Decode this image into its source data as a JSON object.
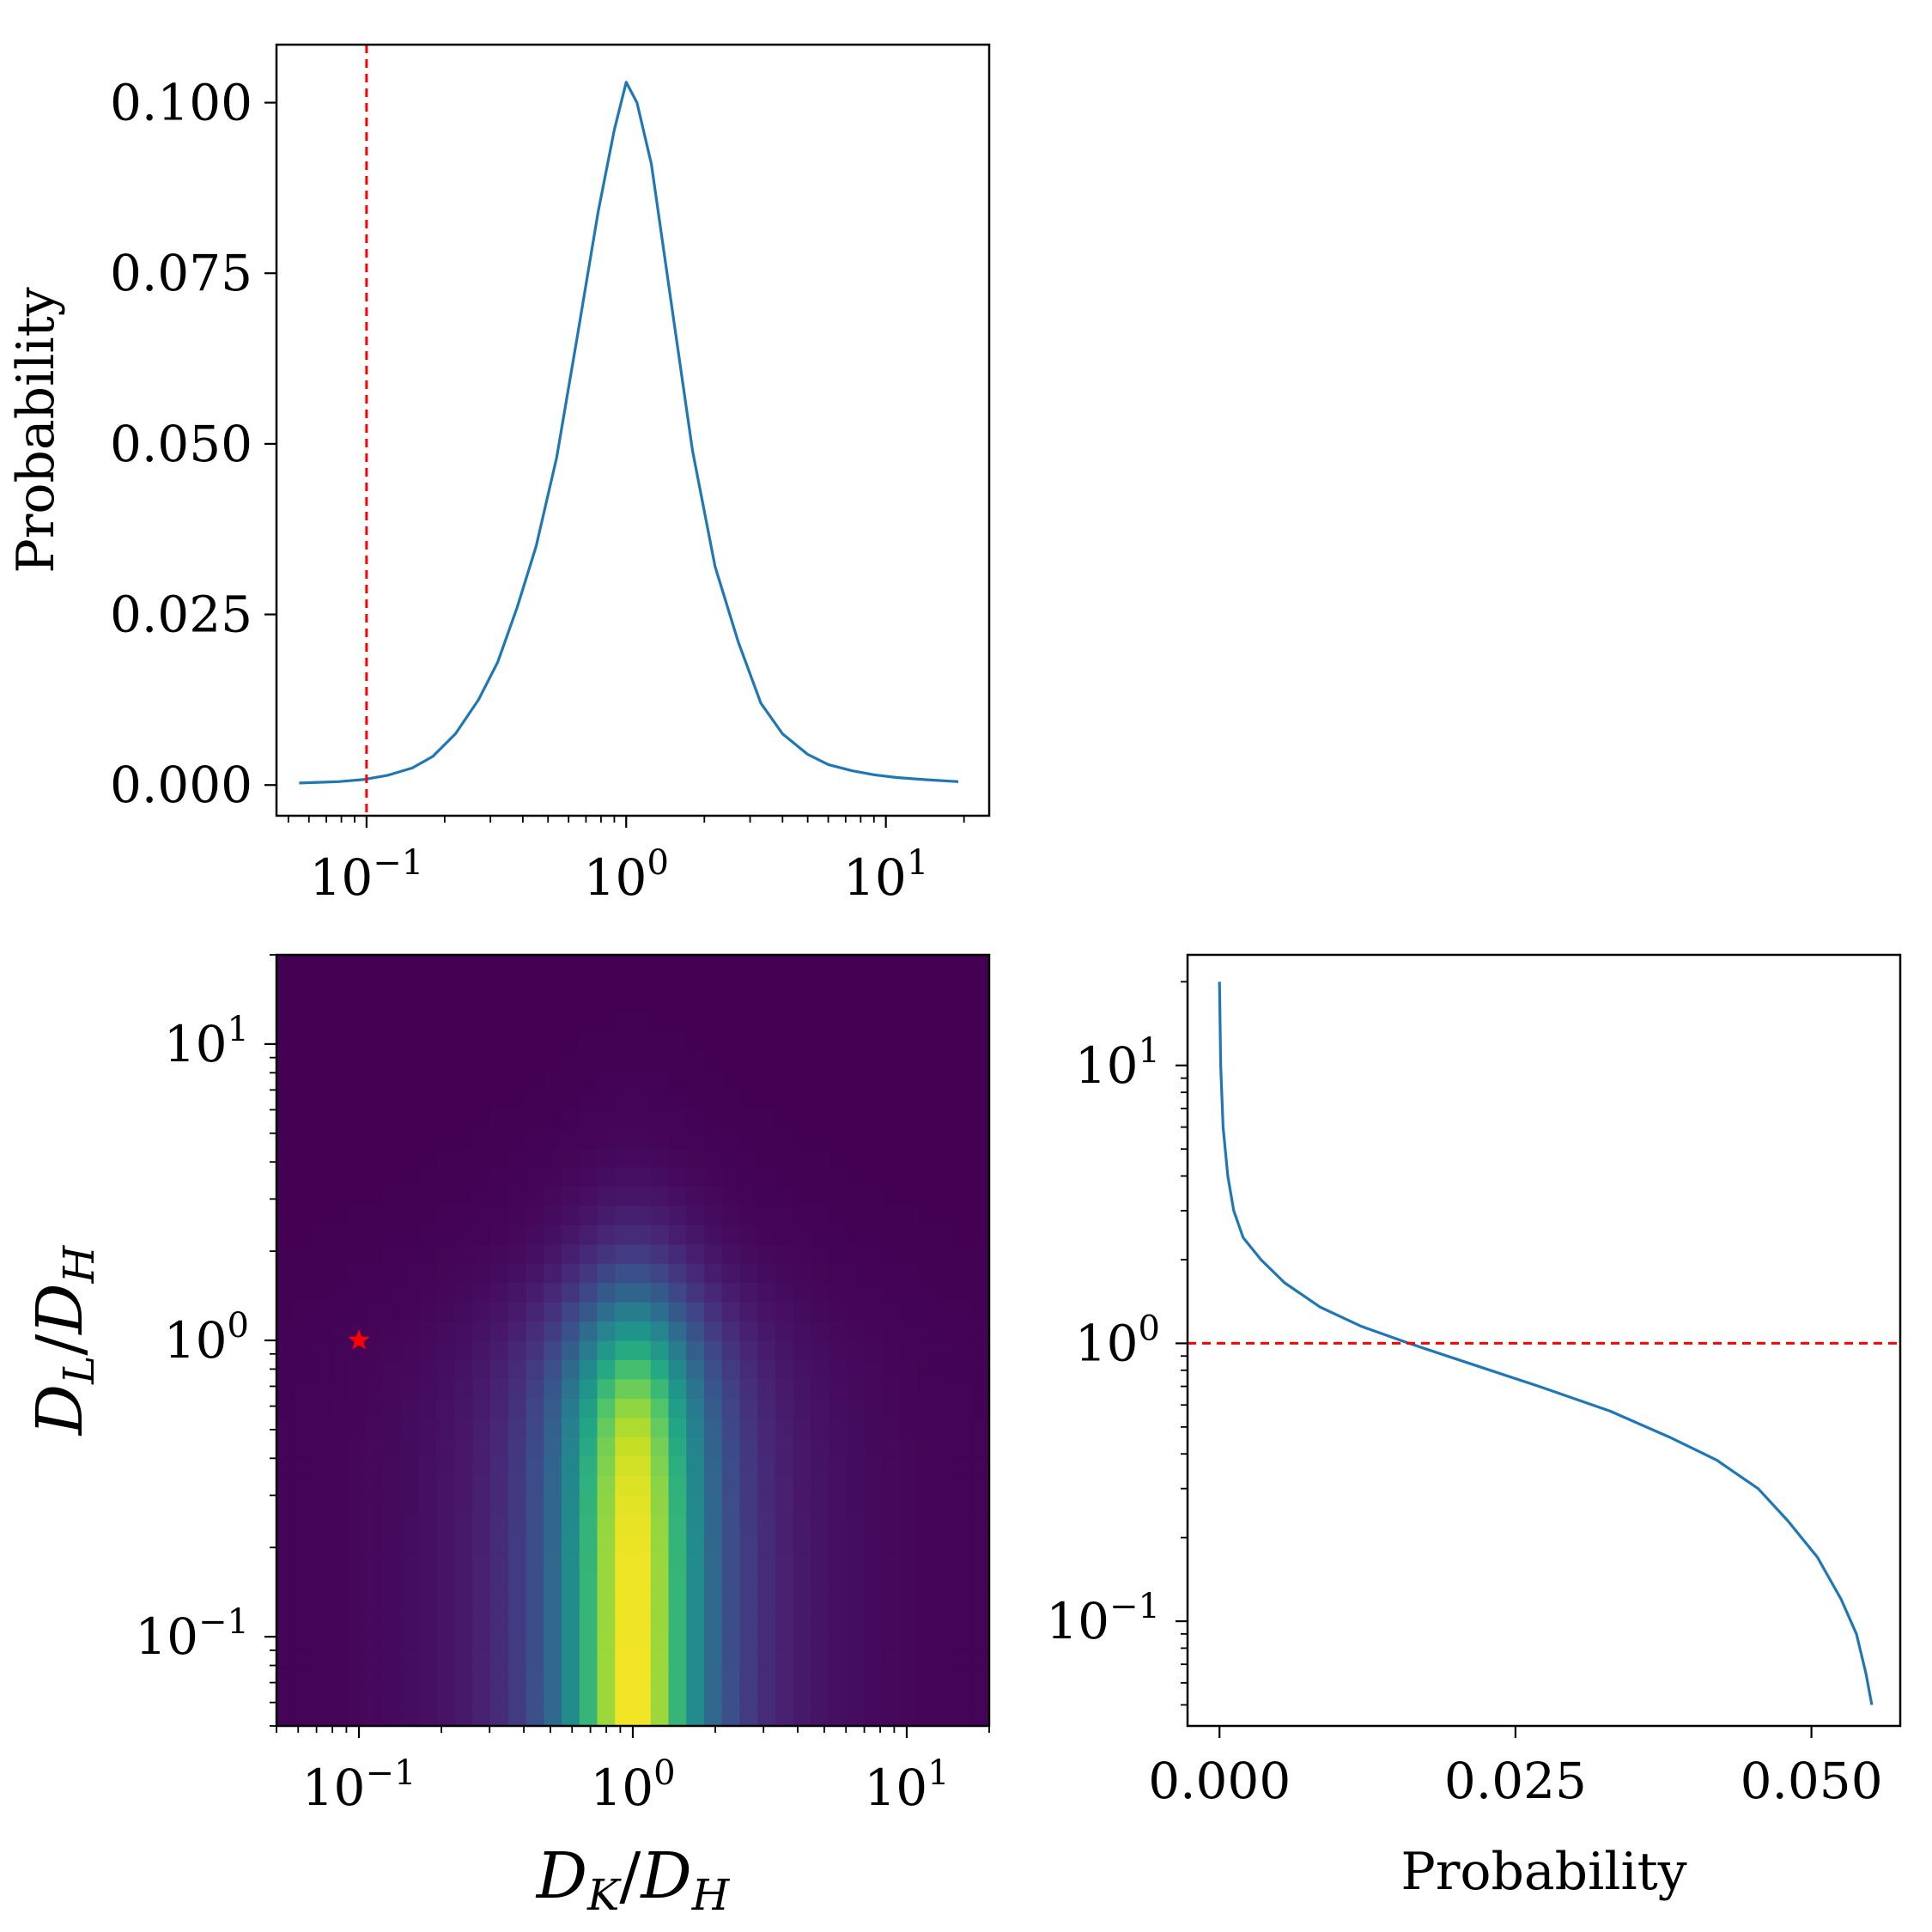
{
  "chart_data": [
    {
      "id": "top-marginal",
      "type": "line",
      "xscale": "log",
      "xlim": [
        0.045,
        25
      ],
      "ylim": [
        -0.0045,
        0.1085
      ],
      "yticks": [
        0.0,
        0.025,
        0.05,
        0.075,
        0.1
      ],
      "ytick_labels": [
        "0.000",
        "0.025",
        "0.050",
        "0.075",
        "0.100"
      ],
      "xticks": [
        0.1,
        1,
        10
      ],
      "xtick_labels": [
        {
          "base": "10",
          "exp": "−1"
        },
        {
          "base": "10",
          "exp": "0"
        },
        {
          "base": "10",
          "exp": "1"
        }
      ],
      "ylabel": "Probability",
      "xlabel": "",
      "series_color": "#1f77b4",
      "x": [
        0.055,
        0.078,
        0.097,
        0.12,
        0.15,
        0.18,
        0.22,
        0.27,
        0.32,
        0.38,
        0.45,
        0.54,
        0.65,
        0.78,
        0.9,
        1.0,
        1.1,
        1.25,
        1.5,
        1.8,
        2.2,
        2.7,
        3.3,
        4.0,
        5.0,
        6.0,
        7.4,
        9.0,
        11.0,
        14.0,
        19.0
      ],
      "y": [
        0.0003,
        0.0005,
        0.0008,
        0.0014,
        0.0025,
        0.0042,
        0.0075,
        0.0125,
        0.018,
        0.026,
        0.035,
        0.048,
        0.066,
        0.084,
        0.096,
        0.103,
        0.1,
        0.091,
        0.07,
        0.049,
        0.032,
        0.021,
        0.012,
        0.0075,
        0.0045,
        0.003,
        0.0021,
        0.0015,
        0.0011,
        0.0008,
        0.0005
      ],
      "reference_line": {
        "orientation": "vertical",
        "x": 0.1,
        "color": "#ff0000",
        "style": "dashed"
      }
    },
    {
      "id": "joint-heatmap",
      "type": "heatmap",
      "xscale": "log",
      "yscale": "log",
      "xlim": [
        0.05,
        20
      ],
      "ylim": [
        0.05,
        20
      ],
      "xticks": [
        0.1,
        1,
        10
      ],
      "xtick_labels": [
        {
          "base": "10",
          "exp": "−1"
        },
        {
          "base": "10",
          "exp": "0"
        },
        {
          "base": "10",
          "exp": "1"
        }
      ],
      "yticks": [
        0.1,
        1,
        10
      ],
      "ytick_labels": [
        {
          "base": "10",
          "exp": "−1"
        },
        {
          "base": "10",
          "exp": "0"
        },
        {
          "base": "10",
          "exp": "1"
        }
      ],
      "xlabel": {
        "main": "D",
        "sub1": "K",
        "sep": "/",
        "main2": "D",
        "sub2": "H"
      },
      "ylabel": {
        "main": "D",
        "sub1": "L",
        "sep": "/",
        "main2": "D",
        "sub2": "H"
      },
      "grid_n": 40,
      "peak_x": 1.0,
      "width_x_decades": 0.3,
      "y_falloff_decades": 0.55,
      "colormap": "viridis",
      "marker": {
        "x": 0.1,
        "y": 1.0,
        "symbol": "star",
        "color": "#ff0000"
      }
    },
    {
      "id": "right-marginal",
      "type": "line",
      "yscale": "log",
      "xlim": [
        -0.0027,
        0.0575
      ],
      "ylim": [
        0.042,
        25
      ],
      "xticks": [
        0.0,
        0.025,
        0.05
      ],
      "xtick_labels": [
        "0.000",
        "0.025",
        "0.050"
      ],
      "yticks": [
        0.1,
        1,
        10
      ],
      "ytick_labels": [
        {
          "base": "10",
          "exp": "−1"
        },
        {
          "base": "10",
          "exp": "0"
        },
        {
          "base": "10",
          "exp": "1"
        }
      ],
      "xlabel": "Probability",
      "ylabel": "",
      "series_color": "#1f77b4",
      "x": [
        0.0,
        0.0001,
        0.0003,
        0.0007,
        0.0012,
        0.002,
        0.0035,
        0.0055,
        0.0085,
        0.012,
        0.016,
        0.021,
        0.027,
        0.033,
        0.038,
        0.042,
        0.0455,
        0.048,
        0.0505,
        0.0525,
        0.0538,
        0.0546,
        0.0551
      ],
      "y": [
        20.0,
        10.0,
        6.0,
        4.0,
        3.0,
        2.4,
        2.0,
        1.65,
        1.35,
        1.15,
        1.0,
        0.85,
        0.7,
        0.57,
        0.46,
        0.38,
        0.3,
        0.23,
        0.17,
        0.12,
        0.09,
        0.065,
        0.05
      ],
      "reference_line": {
        "orientation": "horizontal",
        "y": 1.0,
        "color": "#ff0000",
        "style": "dashed"
      }
    }
  ]
}
